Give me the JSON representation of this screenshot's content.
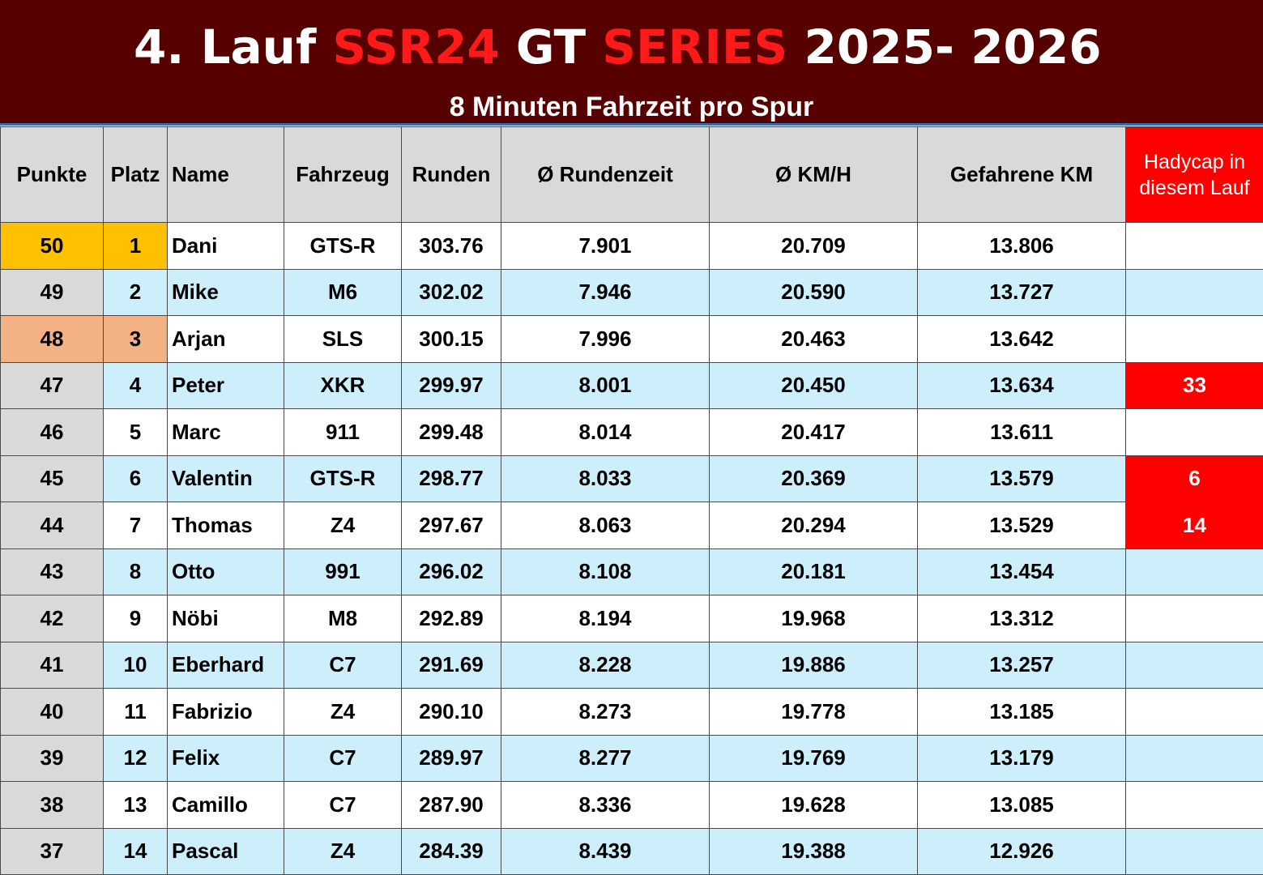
{
  "banner": {
    "title_part1": "4. Lauf ",
    "title_part2": "SSR24",
    "title_part3": " GT ",
    "title_part4": "SERIES",
    "title_part5": " 2025- 2026",
    "subtitle": "8 Minuten Fahrzeit pro Spur"
  },
  "colors": {
    "banner_bg": "#560000",
    "title_accent": "#ff1a1a",
    "header_bg": "#d9d9d9",
    "alt_row_bg": "#cdeefb",
    "first_place": "#ffc000",
    "third_place": "#f4b183",
    "handicap_red": "#ff0000"
  },
  "table": {
    "headers": {
      "punkte": "Punkte",
      "platz": "Platz",
      "name": "Name",
      "fahrzeug": "Fahrzeug",
      "runden": "Runden",
      "rundenzeit": "Ø Rundenzeit",
      "kmh": "Ø KM/H",
      "km": "Gefahrene KM",
      "handicap": "Hadycap in diesem Lauf"
    },
    "rows": [
      {
        "punkte": "50",
        "platz": "1",
        "name": "Dani",
        "fahrzeug": "GTS-R",
        "runden": "303.76",
        "rundenzeit": "7.901",
        "kmh": "20.709",
        "km": "13.806",
        "handicap": ""
      },
      {
        "punkte": "49",
        "platz": "2",
        "name": "Mike",
        "fahrzeug": "M6",
        "runden": "302.02",
        "rundenzeit": "7.946",
        "kmh": "20.590",
        "km": "13.727",
        "handicap": ""
      },
      {
        "punkte": "48",
        "platz": "3",
        "name": "Arjan",
        "fahrzeug": "SLS",
        "runden": "300.15",
        "rundenzeit": "7.996",
        "kmh": "20.463",
        "km": "13.642",
        "handicap": ""
      },
      {
        "punkte": "47",
        "platz": "4",
        "name": "Peter",
        "fahrzeug": "XKR",
        "runden": "299.97",
        "rundenzeit": "8.001",
        "kmh": "20.450",
        "km": "13.634",
        "handicap": "33"
      },
      {
        "punkte": "46",
        "platz": "5",
        "name": "Marc",
        "fahrzeug": "911",
        "runden": "299.48",
        "rundenzeit": "8.014",
        "kmh": "20.417",
        "km": "13.611",
        "handicap": ""
      },
      {
        "punkte": "45",
        "platz": "6",
        "name": "Valentin",
        "fahrzeug": "GTS-R",
        "runden": "298.77",
        "rundenzeit": "8.033",
        "kmh": "20.369",
        "km": "13.579",
        "handicap": "6"
      },
      {
        "punkte": "44",
        "platz": "7",
        "name": "Thomas",
        "fahrzeug": "Z4",
        "runden": "297.67",
        "rundenzeit": "8.063",
        "kmh": "20.294",
        "km": "13.529",
        "handicap": "14"
      },
      {
        "punkte": "43",
        "platz": "8",
        "name": "Otto",
        "fahrzeug": "991",
        "runden": "296.02",
        "rundenzeit": "8.108",
        "kmh": "20.181",
        "km": "13.454",
        "handicap": ""
      },
      {
        "punkte": "42",
        "platz": "9",
        "name": "Nöbi",
        "fahrzeug": "M8",
        "runden": "292.89",
        "rundenzeit": "8.194",
        "kmh": "19.968",
        "km": "13.312",
        "handicap": ""
      },
      {
        "punkte": "41",
        "platz": "10",
        "name": "Eberhard",
        "fahrzeug": "C7",
        "runden": "291.69",
        "rundenzeit": "8.228",
        "kmh": "19.886",
        "km": "13.257",
        "handicap": ""
      },
      {
        "punkte": "40",
        "platz": "11",
        "name": "Fabrizio",
        "fahrzeug": "Z4",
        "runden": "290.10",
        "rundenzeit": "8.273",
        "kmh": "19.778",
        "km": "13.185",
        "handicap": ""
      },
      {
        "punkte": "39",
        "platz": "12",
        "name": "Felix",
        "fahrzeug": "C7",
        "runden": "289.97",
        "rundenzeit": "8.277",
        "kmh": "19.769",
        "km": "13.179",
        "handicap": ""
      },
      {
        "punkte": "38",
        "platz": "13",
        "name": "Camillo",
        "fahrzeug": "C7",
        "runden": "287.90",
        "rundenzeit": "8.336",
        "kmh": "19.628",
        "km": "13.085",
        "handicap": ""
      },
      {
        "punkte": "37",
        "platz": "14",
        "name": "Pascal",
        "fahrzeug": "Z4",
        "runden": "284.39",
        "rundenzeit": "8.439",
        "kmh": "19.388",
        "km": "12.926",
        "handicap": ""
      }
    ]
  }
}
